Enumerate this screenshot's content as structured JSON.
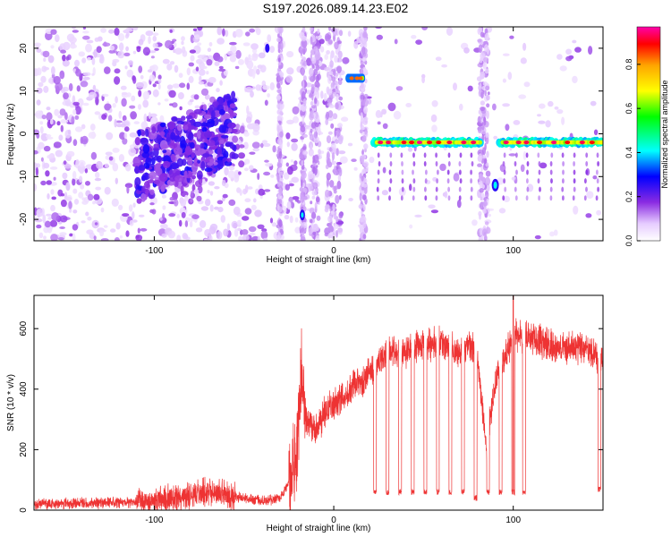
{
  "figure": {
    "title": "S197.2026.089.14.23.E02"
  },
  "chart_data": [
    {
      "type": "heatmap",
      "xlabel": "Height of straight line (km)",
      "ylabel": "Frequency (Hz)",
      "xlim": [
        -167,
        150
      ],
      "ylim": [
        -25,
        25
      ],
      "x_ticks": [
        -100,
        0,
        100
      ],
      "y_ticks": [
        -20,
        -10,
        0,
        10,
        20
      ],
      "colorbar": {
        "label": "Normalized spectral amplitude",
        "range": [
          0,
          0.97
        ],
        "ticks": [
          "0.0",
          "0.2",
          "0.4",
          "0.6",
          "0.8"
        ],
        "tick_values": [
          0,
          0.2,
          0.4,
          0.6,
          0.8
        ],
        "colormap": [
          "#ffffff",
          "#e6ccff",
          "#8a2be2",
          "#0000ff",
          "#00ffff",
          "#00ff00",
          "#ffff00",
          "#ffa500",
          "#ff0000",
          "#ff00aa"
        ]
      },
      "features": [
        {
          "name": "",
          "x_range": [
            22,
            82
          ],
          "freq": -2,
          "peak": 0.95
        },
        {
          "name": "",
          "x_range": [
            92,
            150
          ],
          "freq": -2,
          "peak": 0.95
        },
        {
          "name": "",
          "x_range": [
            8,
            16
          ],
          "freq": 13,
          "peak": 0.8
        },
        {
          "name": "",
          "x_range": [
            88,
            92
          ],
          "freq": -12,
          "peak": 0.4
        },
        {
          "name": "",
          "x_range": [
            -19,
            -16
          ],
          "freq": -19,
          "peak": 0.35
        },
        {
          "name": "",
          "x_range": [
            -38,
            -36
          ],
          "freq": 20,
          "peak": 0.3
        },
        {
          "name": "",
          "x_range": [
            -100,
            -60
          ],
          "freq": -3,
          "peak": 0.3
        }
      ]
    },
    {
      "type": "line",
      "xlabel": "Height of straight line (km)",
      "ylabel": "SNR (10 * v/v)",
      "xlim": [
        -167,
        150
      ],
      "ylim": [
        0,
        710
      ],
      "x_ticks": [
        -100,
        0,
        100
      ],
      "y_ticks": [
        0,
        200,
        400,
        600
      ],
      "color": "#ee3333",
      "series": [
        {
          "x": [
            -167,
            -150,
            -120,
            -100,
            -90,
            -80,
            -70,
            -60,
            -50,
            -40,
            -30,
            -25,
            -20,
            -18,
            -15,
            -10,
            -5,
            0,
            10,
            20,
            30,
            40,
            50,
            60,
            70,
            75,
            80,
            85,
            90,
            100,
            110,
            120,
            130,
            140,
            148,
            150
          ],
          "y": [
            20,
            22,
            25,
            30,
            40,
            50,
            60,
            50,
            40,
            30,
            40,
            90,
            200,
            450,
            300,
            260,
            330,
            350,
            400,
            450,
            520,
            530,
            550,
            550,
            520,
            560,
            520,
            200,
            430,
            570,
            570,
            540,
            530,
            540,
            500,
            480
          ]
        }
      ],
      "dropouts": [
        {
          "x": 23,
          "y": 60
        },
        {
          "x": 30,
          "y": 60
        },
        {
          "x": 37,
          "y": 60
        },
        {
          "x": 44,
          "y": 60
        },
        {
          "x": 51,
          "y": 60
        },
        {
          "x": 58,
          "y": 60
        },
        {
          "x": 65,
          "y": 60
        },
        {
          "x": 72,
          "y": 60
        },
        {
          "x": 79,
          "y": 40
        },
        {
          "x": 86,
          "y": 60
        },
        {
          "x": 93,
          "y": 60
        },
        {
          "x": 100,
          "y": 60
        },
        {
          "x": 106,
          "y": 60
        },
        {
          "x": 148,
          "y": 70
        }
      ],
      "spike": {
        "x": 100,
        "y": 710
      }
    }
  ]
}
